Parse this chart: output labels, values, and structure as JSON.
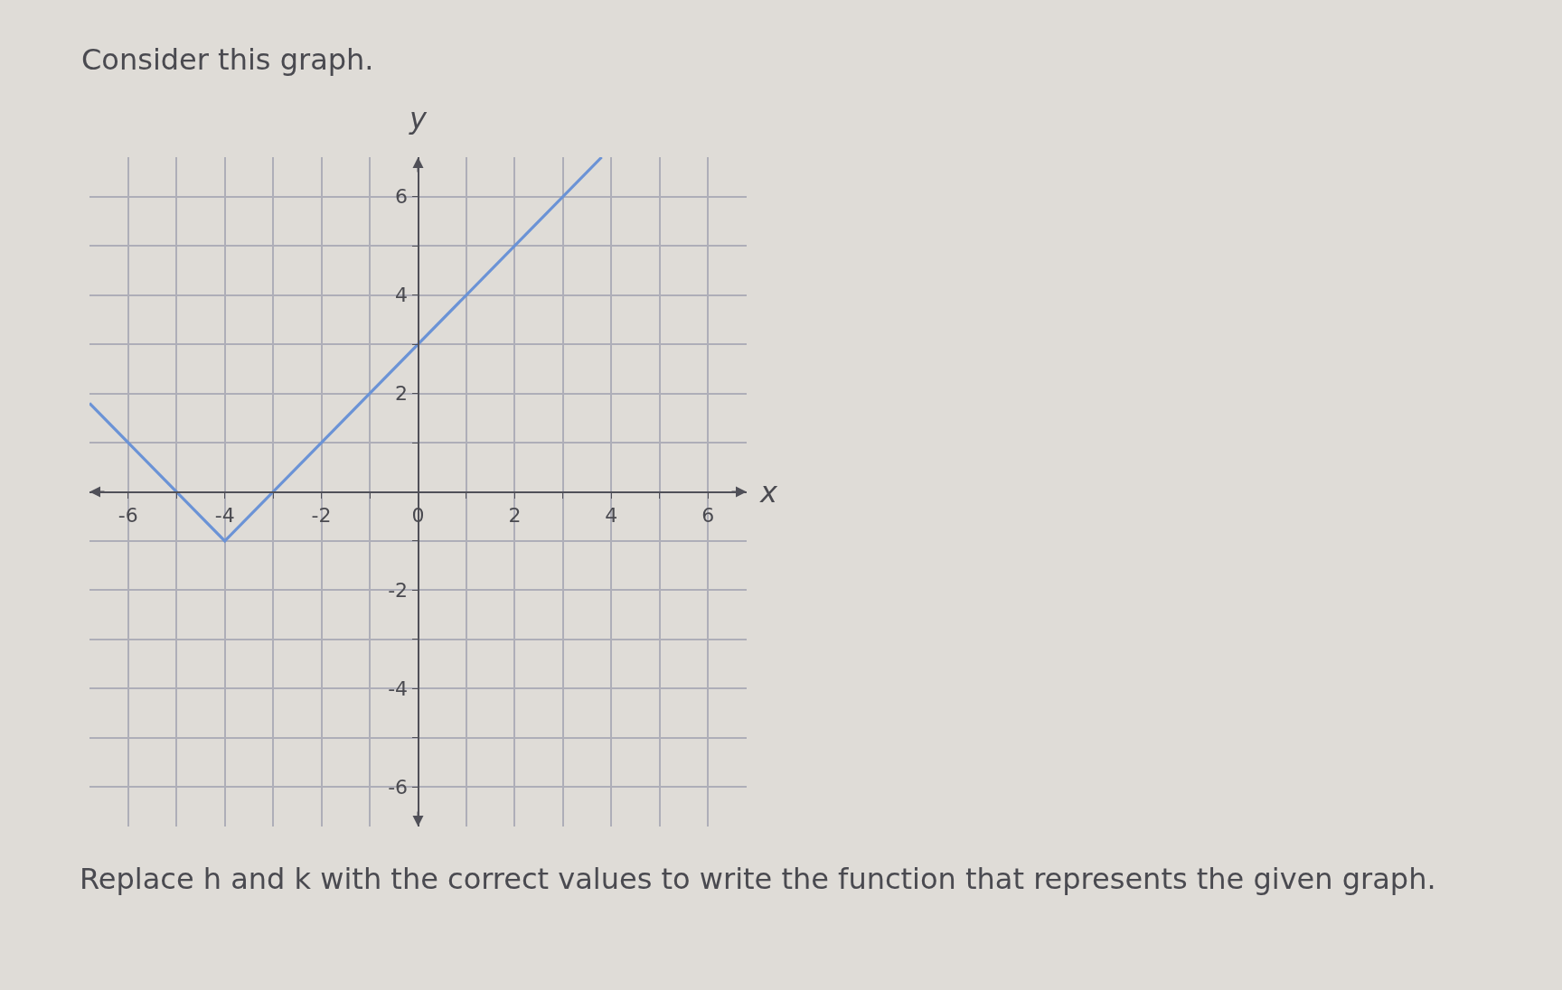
{
  "chart_data": {
    "type": "line",
    "title": "Consider this graph.",
    "xlabel": "x",
    "ylabel": "y",
    "annotations": [
      "Replace h and k with the correct values to write the function that represents the given graph."
    ],
    "x": [
      -6.8,
      -4,
      3.8
    ],
    "series": [
      {
        "color": "#6b93d6",
        "values": [
          1.8,
          -1,
          6.8
        ]
      }
    ],
    "xlim": [
      -6.8,
      6.8
    ],
    "ylim": [
      -6.8,
      6.8
    ],
    "xticks": [
      -6,
      {
        "value": -5,
        "label": null
      },
      -4,
      {
        "value": -3,
        "label": null
      },
      -2,
      {
        "value": -1,
        "label": null
      },
      0,
      {
        "value": 1,
        "label": null
      },
      2,
      {
        "value": 3,
        "label": null
      },
      4,
      {
        "value": 5,
        "label": null
      },
      6
    ],
    "yticks": [
      -6,
      {
        "value": -5,
        "label": null
      },
      -4,
      {
        "value": -3,
        "label": null
      },
      -2,
      {
        "value": -1,
        "label": null
      },
      {
        "value": 0,
        "label": null
      },
      {
        "value": 1,
        "label": null
      },
      2,
      {
        "value": 3,
        "label": null
      },
      4,
      {
        "value": 5,
        "label": null
      },
      6
    ],
    "grid": true,
    "marker": "none",
    "line_style": "solid"
  }
}
